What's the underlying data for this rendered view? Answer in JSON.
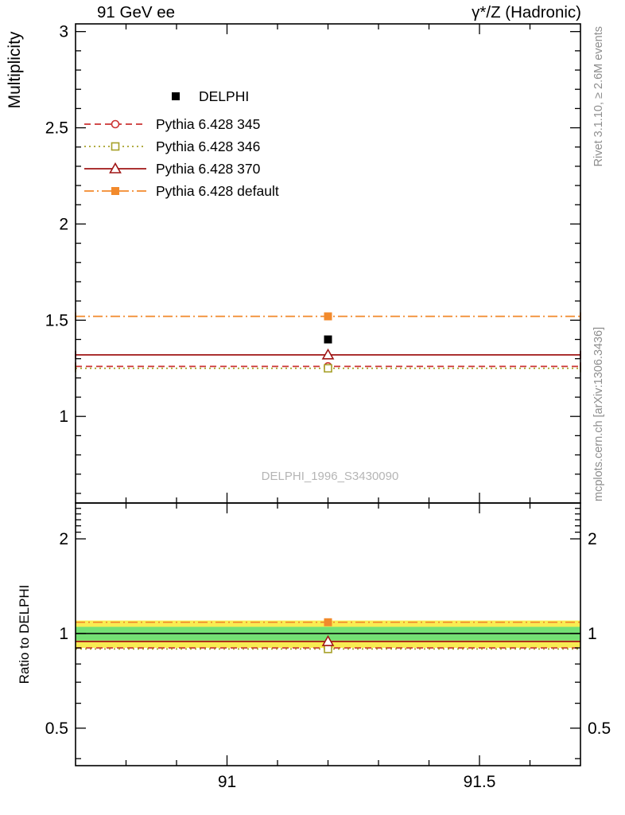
{
  "chart_data": {
    "type": "line",
    "title_left": "91 GeV ee",
    "title_right": "γ*/Z (Hadronic)",
    "annotations": {
      "watermark": "DELPHI_1996_S3430090",
      "side_text_top": "Rivet 3.1.10, ≥ 2.6M events",
      "side_text_bottom": "mcplots.cern.ch [arXiv:1306.3436]"
    },
    "xlim": [
      90.7,
      91.7
    ],
    "xticks": [
      91,
      91.5
    ],
    "xtick_labels": [
      "91",
      "91.5"
    ],
    "x_minor_step": 0.1,
    "x_point": 91.2,
    "main": {
      "ylabel": "Multiplicity",
      "scale": "linear",
      "ylim": [
        0.55,
        3.04
      ],
      "yticks": [
        1,
        1.5,
        2,
        2.5,
        3
      ],
      "ytick_labels": [
        "1",
        "1.5",
        "2",
        "2.5",
        "3"
      ],
      "y_minor_step": 0.1
    },
    "ratio": {
      "ylabel": "Ratio to DELPHI",
      "scale": "log",
      "ylim": [
        0.38,
        2.6
      ],
      "yticks": [
        0.5,
        1,
        2
      ],
      "ytick_labels": [
        "0.5",
        "1",
        "2"
      ],
      "minor_ticks": [
        0.4,
        0.6,
        0.7,
        0.8,
        0.9,
        2.1,
        2.2,
        2.3,
        2.4,
        2.5
      ],
      "bands": [
        {
          "range": [
            0.9,
            1.1
          ],
          "color": "#f9ec52"
        },
        {
          "range": [
            0.95,
            1.05
          ],
          "color": "#74e074"
        }
      ]
    },
    "series": [
      {
        "name": "DELPHI",
        "value": 1.4,
        "ratio": null,
        "color": "#000000",
        "marker": "filled-square",
        "line": "none"
      },
      {
        "name": "Pythia 6.428 345",
        "value": 1.26,
        "ratio": 0.9,
        "color": "#cc3333",
        "marker": "open-circle",
        "line": "dashed"
      },
      {
        "name": "Pythia 6.428 346",
        "value": 1.25,
        "ratio": 0.893,
        "color": "#a6a028",
        "marker": "open-square",
        "line": "dotted"
      },
      {
        "name": "Pythia 6.428 370",
        "value": 1.32,
        "ratio": 0.943,
        "color": "#a01616",
        "marker": "open-triangle",
        "line": "solid"
      },
      {
        "name": "Pythia 6.428 default",
        "value": 1.52,
        "ratio": 1.086,
        "color": "#f28a2c",
        "marker": "filled-square",
        "line": "dashdot"
      }
    ]
  }
}
